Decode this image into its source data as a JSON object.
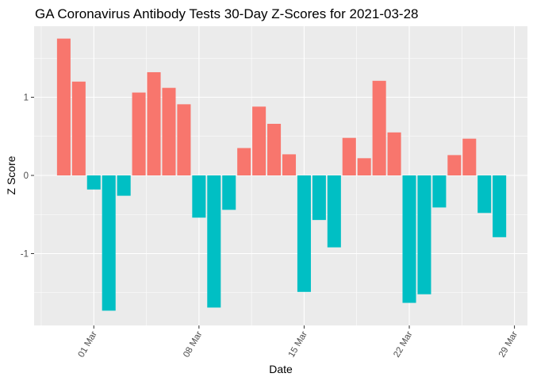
{
  "chart_data": {
    "type": "bar",
    "title": "GA Coronavirus Antibody Tests 30-Day Z-Scores for 2021-03-28",
    "xlabel": "Date",
    "ylabel": "Z Score",
    "x_tick_labels": [
      "01 Mar",
      "08 Mar",
      "15 Mar",
      "22 Mar",
      "29 Mar"
    ],
    "y_tick_labels": [
      "-1",
      "0",
      "1"
    ],
    "ylim": [
      -1.95,
      1.85
    ],
    "grid": true,
    "legend": "none",
    "colors": {
      "positive": "#F8766D",
      "negative": "#00BFC4",
      "panel": "#EBEBEB",
      "grid": "#FFFFFF"
    },
    "categories": [
      "2021-02-27",
      "2021-02-28",
      "2021-03-01",
      "2021-03-02",
      "2021-03-03",
      "2021-03-04",
      "2021-03-05",
      "2021-03-06",
      "2021-03-07",
      "2021-03-08",
      "2021-03-09",
      "2021-03-10",
      "2021-03-11",
      "2021-03-12",
      "2021-03-13",
      "2021-03-14",
      "2021-03-15",
      "2021-03-16",
      "2021-03-17",
      "2021-03-18",
      "2021-03-19",
      "2021-03-20",
      "2021-03-21",
      "2021-03-22",
      "2021-03-23",
      "2021-03-24",
      "2021-03-25",
      "2021-03-26",
      "2021-03-27",
      "2021-03-28"
    ],
    "values": [
      1.75,
      1.2,
      -0.18,
      -1.73,
      -0.26,
      1.06,
      1.32,
      1.12,
      0.91,
      -0.54,
      -1.69,
      -0.44,
      0.35,
      0.88,
      0.66,
      0.27,
      -1.49,
      -0.57,
      -0.92,
      0.48,
      0.22,
      1.21,
      0.55,
      -1.63,
      -1.52,
      -0.41,
      0.26,
      0.47,
      -0.48,
      -0.79
    ]
  }
}
